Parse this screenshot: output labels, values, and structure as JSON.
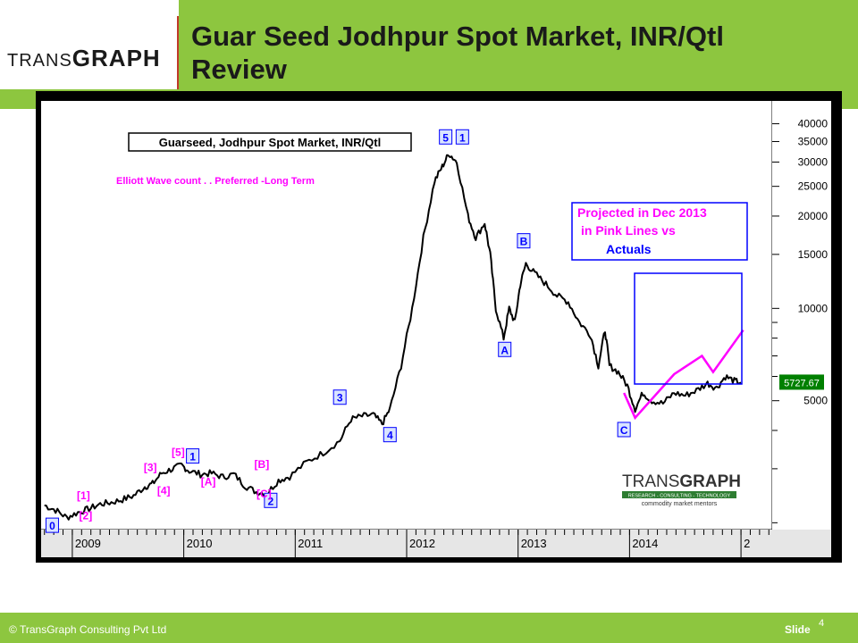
{
  "header": {
    "logo_prefix": "TRANS",
    "logo_suffix": "GRAPH",
    "title_line1": "Guar Seed Jodhpur Spot Market, INR/Qtl",
    "title_line2": "Review"
  },
  "footer": {
    "copyright": "© TransGraph Consulting Pvt Ltd",
    "slide_label": "Slide",
    "slide_number": "4"
  },
  "colors": {
    "header_green": "#8dc63f",
    "price_line": "#000000",
    "projection_pink": "#ff00ff",
    "wave_label_pink": "#ff00ff",
    "wave_label_blue": "#0000ff",
    "price_tag_green": "#008000"
  },
  "chart_data": {
    "type": "line",
    "title": "Guarseed, Jodhpur Spot Market, INR/Qtl",
    "subtitle": "Elliott Wave count . . Preferred -Long Term",
    "y_scale": "log",
    "ylim": [
      1900,
      45000
    ],
    "x_range": [
      "2008-10",
      "2015-03"
    ],
    "x_tick_labels": [
      "2009",
      "2010",
      "2011",
      "2012",
      "2013",
      "2014",
      "2"
    ],
    "y_tick_labels": [
      "40000",
      "35000",
      "30000",
      "25000",
      "20000",
      "15000",
      "10000",
      "5000"
    ],
    "last_price": "5727.67",
    "series": [
      {
        "values": [
          [
            2008.75,
            2280
          ],
          [
            2008.85,
            2200
          ],
          [
            2008.95,
            2080
          ],
          [
            2009.05,
            2160
          ],
          [
            2009.15,
            2220
          ],
          [
            2009.25,
            2300
          ],
          [
            2009.35,
            2330
          ],
          [
            2009.45,
            2380
          ],
          [
            2009.55,
            2450
          ],
          [
            2009.65,
            2620
          ],
          [
            2009.72,
            2680
          ],
          [
            2009.8,
            2900
          ],
          [
            2009.9,
            3000
          ],
          [
            2009.98,
            3080
          ],
          [
            2010.05,
            2950
          ],
          [
            2010.15,
            2880
          ],
          [
            2010.25,
            2900
          ],
          [
            2010.35,
            2820
          ],
          [
            2010.45,
            2880
          ],
          [
            2010.55,
            2640
          ],
          [
            2010.65,
            2520
          ],
          [
            2010.75,
            2500
          ],
          [
            2010.85,
            2750
          ],
          [
            2010.95,
            2830
          ],
          [
            2011.1,
            3150
          ],
          [
            2011.25,
            3380
          ],
          [
            2011.4,
            3700
          ],
          [
            2011.5,
            4350
          ],
          [
            2011.6,
            4450
          ],
          [
            2011.7,
            4500
          ],
          [
            2011.78,
            4200
          ],
          [
            2011.85,
            4700
          ],
          [
            2011.95,
            6500
          ],
          [
            2012.05,
            10000
          ],
          [
            2012.15,
            17000
          ],
          [
            2012.25,
            26000
          ],
          [
            2012.32,
            29000
          ],
          [
            2012.38,
            32000
          ],
          [
            2012.45,
            30000
          ],
          [
            2012.55,
            20000
          ],
          [
            2012.62,
            17000
          ],
          [
            2012.7,
            19000
          ],
          [
            2012.75,
            15000
          ],
          [
            2012.8,
            10000
          ],
          [
            2012.87,
            8000
          ],
          [
            2012.92,
            10000
          ],
          [
            2012.97,
            9000
          ],
          [
            2013.02,
            12000
          ],
          [
            2013.07,
            14000
          ],
          [
            2013.15,
            13000
          ],
          [
            2013.25,
            12000
          ],
          [
            2013.35,
            11000
          ],
          [
            2013.45,
            10500
          ],
          [
            2013.55,
            9000
          ],
          [
            2013.65,
            8200
          ],
          [
            2013.72,
            6500
          ],
          [
            2013.78,
            8500
          ],
          [
            2013.82,
            6500
          ],
          [
            2013.9,
            6200
          ],
          [
            2013.98,
            5600
          ],
          [
            2014.05,
            4700
          ],
          [
            2014.12,
            5300
          ],
          [
            2014.2,
            5000
          ],
          [
            2014.3,
            4900
          ],
          [
            2014.4,
            5300
          ],
          [
            2014.5,
            5200
          ],
          [
            2014.6,
            5400
          ],
          [
            2014.7,
            5700
          ],
          [
            2014.78,
            5500
          ],
          [
            2014.86,
            6000
          ],
          [
            2014.94,
            5800
          ],
          [
            2015.0,
            5728
          ]
        ]
      },
      {
        "values": [
          [
            2013.95,
            5300
          ],
          [
            2014.05,
            4400
          ],
          [
            2014.4,
            6100
          ],
          [
            2014.65,
            7000
          ],
          [
            2014.75,
            6200
          ],
          [
            2015.02,
            8500
          ]
        ]
      }
    ],
    "annotations": {
      "wave_labels_blue": [
        {
          "text": "0",
          "x": 2008.82,
          "y": 1950
        },
        {
          "text": "1",
          "x": 2010.08,
          "y": 3280
        },
        {
          "text": "2",
          "x": 2010.78,
          "y": 2350
        },
        {
          "text": "3",
          "x": 2011.4,
          "y": 5100
        },
        {
          "text": "4",
          "x": 2011.85,
          "y": 3850
        },
        {
          "text": "5",
          "x": 2012.35,
          "y": 36000
        },
        {
          "text": "1",
          "x": 2012.5,
          "y": 36000
        },
        {
          "text": "A",
          "x": 2012.88,
          "y": 7300
        },
        {
          "text": "B",
          "x": 2013.05,
          "y": 16500
        },
        {
          "text": "C",
          "x": 2013.95,
          "y": 4000
        }
      ],
      "wave_labels_pink": [
        {
          "text": "[1]",
          "x": 2009.1,
          "y": 2390
        },
        {
          "text": "[2]",
          "x": 2009.12,
          "y": 2050
        },
        {
          "text": "[3]",
          "x": 2009.7,
          "y": 2950
        },
        {
          "text": "[4]",
          "x": 2009.82,
          "y": 2480
        },
        {
          "text": "[5]",
          "x": 2009.95,
          "y": 3300
        },
        {
          "text": "[A]",
          "x": 2010.22,
          "y": 2650
        },
        {
          "text": "[B]",
          "x": 2010.7,
          "y": 3020
        },
        {
          "text": "[C]",
          "x": 2010.72,
          "y": 2420
        }
      ],
      "projection_box_text": [
        "Projected in Dec 2013",
        "in Pink Lines  vs",
        "Actuals"
      ]
    },
    "watermark": {
      "logo_prefix": "TRANS",
      "logo_suffix": "GRAPH",
      "tagline_1": "RESEARCH - CONSULTING - TECHNOLOGY",
      "tagline_2": "commodity  market  mentors"
    }
  }
}
